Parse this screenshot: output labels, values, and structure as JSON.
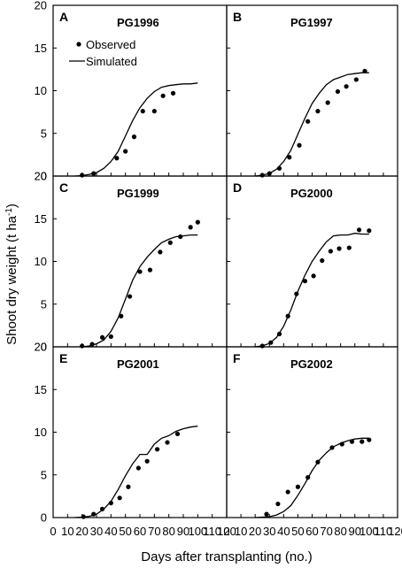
{
  "figure": {
    "ylabel_main": "Shoot dry weight (t ha",
    "ylabel_sup": "-1",
    "ylabel_close": ")",
    "xlabel": "Days after transplanting (no.)",
    "legend": {
      "observed": "Observed",
      "simulated": "Simulated"
    }
  },
  "chart_data": [
    {
      "type": "scatter",
      "panel_label": "A",
      "title": "PG1996",
      "xlim": [
        0,
        120
      ],
      "ylim": [
        0,
        20
      ],
      "xticks": [
        "0",
        "10",
        "20",
        "30",
        "40",
        "50",
        "60",
        "70",
        "80",
        "90",
        "100",
        "110",
        "120"
      ],
      "yticks": [
        "0",
        "5",
        "10",
        "15",
        "20"
      ],
      "series": [
        {
          "name": "Observed",
          "kind": "points",
          "x": [
            20,
            28,
            44,
            50,
            56,
            62,
            70,
            76,
            83
          ],
          "y": [
            0.1,
            0.3,
            2.1,
            2.9,
            4.6,
            7.6,
            7.6,
            9.4,
            9.7
          ]
        },
        {
          "name": "Simulated",
          "kind": "line",
          "x": [
            15,
            20,
            25,
            30,
            35,
            40,
            45,
            50,
            55,
            60,
            65,
            70,
            75,
            80,
            85,
            90,
            95,
            100
          ],
          "y": [
            0,
            0.05,
            0.2,
            0.4,
            0.9,
            1.7,
            2.9,
            4.7,
            6.5,
            8.0,
            9.1,
            9.9,
            10.4,
            10.6,
            10.7,
            10.8,
            10.8,
            10.9
          ]
        }
      ]
    },
    {
      "type": "scatter",
      "panel_label": "B",
      "title": "PG1997",
      "xlim": [
        0,
        120
      ],
      "ylim": [
        0,
        20
      ],
      "xticks": [
        "0",
        "10",
        "20",
        "30",
        "40",
        "50",
        "60",
        "70",
        "80",
        "90",
        "100",
        "110",
        "120"
      ],
      "yticks": [
        "0",
        "5",
        "10",
        "15",
        "20"
      ],
      "series": [
        {
          "name": "Observed",
          "kind": "points",
          "x": [
            25,
            30,
            37,
            44,
            51,
            57,
            64,
            71,
            78,
            84,
            91,
            97
          ],
          "y": [
            0.1,
            0.3,
            0.9,
            2.2,
            3.6,
            6.4,
            7.6,
            8.6,
            9.9,
            10.5,
            11.3,
            12.3
          ]
        },
        {
          "name": "Simulated",
          "kind": "line",
          "x": [
            20,
            25,
            30,
            35,
            40,
            45,
            50,
            55,
            60,
            65,
            70,
            75,
            80,
            85,
            90,
            95,
            100
          ],
          "y": [
            0,
            0.1,
            0.3,
            0.8,
            1.7,
            3.0,
            4.9,
            6.8,
            8.5,
            9.7,
            10.7,
            11.3,
            11.6,
            11.9,
            12.0,
            12.1,
            12.1
          ]
        }
      ]
    },
    {
      "type": "scatter",
      "panel_label": "C",
      "title": "PG1999",
      "xlim": [
        0,
        120
      ],
      "ylim": [
        0,
        20
      ],
      "xticks": [
        "0",
        "10",
        "20",
        "30",
        "40",
        "50",
        "60",
        "70",
        "80",
        "90",
        "100",
        "110",
        "120"
      ],
      "yticks": [
        "0",
        "5",
        "10",
        "15",
        "20"
      ],
      "series": [
        {
          "name": "Observed",
          "kind": "points",
          "x": [
            20,
            27,
            34,
            40,
            47,
            53,
            60,
            67,
            74,
            81,
            88,
            95,
            100
          ],
          "y": [
            0.1,
            0.3,
            1.1,
            1.2,
            3.6,
            5.9,
            8.8,
            9.0,
            11.1,
            12.2,
            12.9,
            14.0,
            14.6
          ]
        },
        {
          "name": "Simulated",
          "kind": "line",
          "x": [
            20,
            25,
            30,
            35,
            40,
            45,
            50,
            55,
            60,
            65,
            70,
            75,
            80,
            85,
            90,
            95,
            100
          ],
          "y": [
            0,
            0.1,
            0.35,
            0.8,
            1.8,
            3.4,
            5.6,
            7.8,
            9.4,
            10.5,
            11.4,
            12.2,
            12.6,
            12.9,
            13.0,
            13.1,
            13.1
          ]
        }
      ]
    },
    {
      "type": "scatter",
      "panel_label": "D",
      "title": "PG2000",
      "xlim": [
        0,
        120
      ],
      "ylim": [
        0,
        20
      ],
      "xticks": [
        "0",
        "10",
        "20",
        "30",
        "40",
        "50",
        "60",
        "70",
        "80",
        "90",
        "100",
        "110",
        "120"
      ],
      "yticks": [
        "0",
        "5",
        "10",
        "15",
        "20"
      ],
      "series": [
        {
          "name": "Observed",
          "kind": "points",
          "x": [
            25,
            31,
            37,
            43,
            49,
            55,
            61,
            67,
            73,
            79,
            86,
            93,
            100
          ],
          "y": [
            0.1,
            0.5,
            1.5,
            3.6,
            6.2,
            7.7,
            8.3,
            10.1,
            11.2,
            11.5,
            11.6,
            13.7,
            13.6
          ]
        },
        {
          "name": "Simulated",
          "kind": "line",
          "x": [
            20,
            25,
            30,
            35,
            40,
            45,
            50,
            55,
            60,
            65,
            70,
            75,
            80,
            85,
            90,
            95,
            100
          ],
          "y": [
            0,
            0.1,
            0.4,
            1.1,
            2.4,
            4.3,
            6.5,
            8.4,
            10.0,
            11.2,
            12.3,
            13.0,
            13.1,
            13.1,
            13.3,
            13.2,
            13.2
          ]
        }
      ]
    },
    {
      "type": "scatter",
      "panel_label": "E",
      "title": "PG2001",
      "xlim": [
        0,
        120
      ],
      "ylim": [
        0,
        20
      ],
      "xticks": [
        "0",
        "10",
        "20",
        "30",
        "40",
        "50",
        "60",
        "70",
        "80",
        "90",
        "100",
        "110",
        "120"
      ],
      "yticks": [
        "0",
        "5",
        "10",
        "15",
        "20"
      ],
      "series": [
        {
          "name": "Observed",
          "kind": "points",
          "x": [
            21,
            28,
            34,
            40,
            46,
            52,
            59,
            65,
            72,
            79,
            86
          ],
          "y": [
            0.1,
            0.4,
            1.0,
            1.7,
            2.3,
            3.6,
            5.8,
            6.6,
            8.0,
            8.8,
            9.8
          ]
        },
        {
          "name": "Simulated",
          "kind": "line",
          "x": [
            15,
            20,
            25,
            30,
            35,
            40,
            45,
            50,
            55,
            60,
            65,
            70,
            75,
            80,
            85,
            90,
            95,
            100
          ],
          "y": [
            0,
            0.05,
            0.15,
            0.4,
            1.0,
            1.9,
            3.3,
            4.9,
            6.3,
            7.4,
            7.4,
            8.6,
            9.3,
            9.6,
            10.1,
            10.4,
            10.6,
            10.7
          ]
        }
      ]
    },
    {
      "type": "scatter",
      "panel_label": "F",
      "title": "PG2002",
      "xlim": [
        0,
        120
      ],
      "ylim": [
        0,
        20
      ],
      "xticks": [
        "0",
        "10",
        "20",
        "30",
        "40",
        "50",
        "60",
        "70",
        "80",
        "90",
        "100",
        "110",
        "120"
      ],
      "yticks": [
        "0",
        "5",
        "10",
        "15",
        "20"
      ],
      "series": [
        {
          "name": "Observed",
          "kind": "points",
          "x": [
            28,
            36,
            43,
            50,
            57,
            64,
            74,
            81,
            88,
            95,
            100
          ],
          "y": [
            0.4,
            1.6,
            3.0,
            3.6,
            4.7,
            6.5,
            8.2,
            8.6,
            8.9,
            8.9,
            9.1
          ]
        },
        {
          "name": "Simulated",
          "kind": "line",
          "x": [
            20,
            25,
            30,
            35,
            40,
            45,
            50,
            55,
            60,
            65,
            70,
            75,
            80,
            85,
            90,
            95,
            100
          ],
          "y": [
            0,
            0.05,
            0.1,
            0.3,
            0.7,
            1.4,
            2.6,
            4.0,
            5.5,
            6.7,
            7.6,
            8.3,
            8.7,
            9.0,
            9.2,
            9.3,
            9.3
          ]
        }
      ]
    }
  ]
}
